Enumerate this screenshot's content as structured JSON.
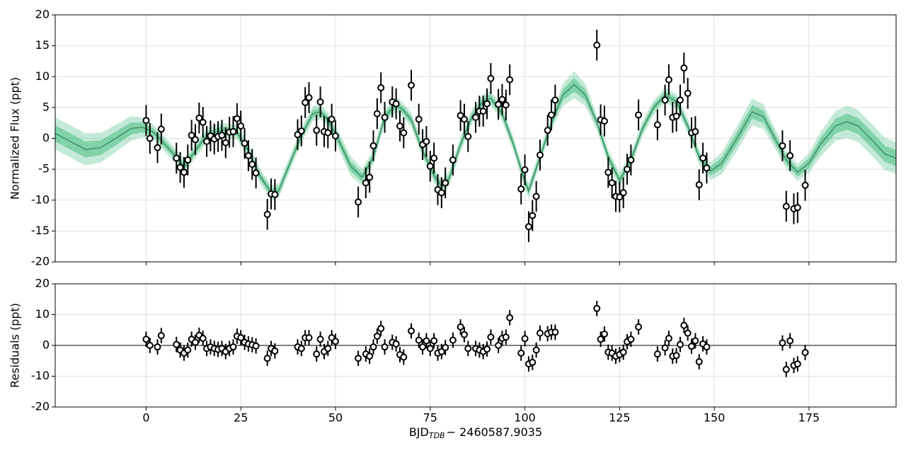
{
  "chart_data": [
    {
      "type": "errorbar",
      "ylabel": "Normalized Flux (ppt)",
      "xlim": [
        -24,
        198
      ],
      "ylim": [
        -20,
        20
      ],
      "xticks": [
        0,
        25,
        50,
        75,
        100,
        125,
        150,
        175
      ],
      "yticks": [
        -20,
        -15,
        -10,
        -5,
        0,
        5,
        10,
        15,
        20
      ],
      "grid": true,
      "color": "#000000",
      "yerr": 2.5,
      "x": [
        0,
        1,
        3,
        4,
        8,
        9,
        10,
        11,
        12,
        13,
        14,
        15,
        16,
        17,
        18,
        19,
        20,
        21,
        22,
        23,
        24,
        25,
        26,
        27,
        28,
        29,
        32,
        33,
        34,
        40,
        41,
        42,
        43,
        45,
        46,
        47,
        48,
        49,
        50,
        56,
        58,
        59,
        60,
        61,
        62,
        63,
        65,
        66,
        67,
        68,
        70,
        72,
        73,
        74,
        75,
        76,
        77,
        78,
        79,
        81,
        83,
        84,
        85,
        87,
        88,
        89,
        90,
        91,
        93,
        94,
        95,
        96,
        99,
        100,
        101,
        102,
        103,
        104,
        106,
        107,
        108,
        119,
        120,
        121,
        122,
        123,
        124,
        125,
        126,
        127,
        128,
        130,
        135,
        137,
        138,
        139,
        140,
        141,
        142,
        143,
        144,
        145,
        146,
        147,
        148,
        168,
        169,
        170,
        171,
        172,
        174
      ],
      "values": [
        2.9,
        0,
        -1.5,
        1.5,
        -3.2,
        -4.7,
        -5.5,
        -3.5,
        0.5,
        -0.2,
        3.3,
        2.6,
        -0.5,
        0.4,
        -0.1,
        0.3,
        0.5,
        -0.7,
        1,
        1.1,
        3.2,
        2,
        -0.8,
        -2.8,
        -4.2,
        -5.6,
        -12.3,
        -9,
        -9.1,
        0.6,
        1.2,
        5.8,
        6.6,
        1.3,
        5.9,
        1.1,
        0.9,
        3.1,
        0.4,
        -10.3,
        -7.2,
        -6.3,
        -1.2,
        4,
        8.2,
        3.4,
        5.9,
        5.6,
        2,
        0.9,
        8.6,
        3.1,
        -1,
        -0.5,
        -4.5,
        -3.2,
        -8.3,
        -8.8,
        -7.2,
        -3.5,
        3.7,
        3.1,
        0.3,
        3.4,
        4.4,
        4.4,
        5.6,
        9.7,
        5.5,
        6.3,
        5.4,
        9.5,
        -8.2,
        -5.1,
        -14.3,
        -12.5,
        -9.4,
        -2.7,
        1.3,
        3.8,
        6.2,
        15.1,
        3,
        2.8,
        -5.5,
        -7.2,
        -9.4,
        -9.5,
        -8.8,
        -5,
        -3.5,
        3.8,
        2.2,
        6.2,
        9.5,
        3.4,
        3.6,
        6.2,
        11.4,
        7.3,
        0.9,
        1.1,
        -7.5,
        -3.2,
        -4.8,
        -1.2,
        -11,
        -2.8,
        -11.4,
        -11.2,
        -7.6
      ],
      "model": {
        "color": "#3f8f68",
        "band_color": "#3cba7a",
        "x": [
          -24,
          -20,
          -16,
          -12,
          -8,
          -4,
          -1,
          2,
          5,
          8,
          10,
          13,
          16,
          20,
          24,
          27,
          30,
          33,
          35,
          38,
          41,
          44,
          46,
          48,
          51,
          54,
          57,
          60,
          63,
          66,
          68,
          70,
          73,
          76,
          78,
          80,
          83,
          86,
          89,
          91,
          94,
          97,
          100,
          101,
          104,
          107,
          110,
          113,
          116,
          119,
          122,
          125,
          128,
          131,
          134,
          137,
          140,
          143,
          146,
          149,
          152,
          156,
          160,
          163,
          166,
          169,
          172,
          175,
          178,
          182,
          185,
          188,
          192,
          195,
          198
        ],
        "values": [
          0.8,
          -0.5,
          -1.8,
          -1.5,
          0,
          1.6,
          1.8,
          1,
          -1,
          -3,
          -4.6,
          -2,
          0.5,
          1.3,
          1,
          -2,
          -6,
          -8.8,
          -8.5,
          -4,
          0.5,
          4,
          4.3,
          3,
          -0.5,
          -4.5,
          -6.3,
          -3,
          3.5,
          5.5,
          4.5,
          3,
          -2,
          -6,
          -7.8,
          -6.5,
          -1,
          3.5,
          6,
          6.5,
          4,
          -1,
          -7,
          -8.5,
          -3,
          2.5,
          7,
          8.7,
          7,
          2.5,
          -3,
          -6.8,
          -3.5,
          1.5,
          5,
          7,
          6,
          2,
          -3,
          -5.3,
          -4,
          0,
          4.3,
          3.5,
          0,
          -3.5,
          -5.5,
          -4,
          -1,
          2,
          2.7,
          2,
          -0.5,
          -2.5,
          -3.2
        ],
        "sigma": [
          1.3,
          1.3,
          1.3,
          1.2,
          1.1,
          1,
          0.8,
          0.6,
          0.6,
          0.6,
          0.6,
          0.6,
          0.6,
          0.6,
          0.6,
          0.6,
          0.6,
          0.6,
          0.6,
          0.6,
          0.6,
          0.6,
          0.6,
          0.6,
          0.7,
          0.8,
          0.7,
          0.6,
          0.6,
          0.6,
          0.6,
          0.6,
          0.6,
          0.6,
          0.6,
          0.6,
          0.6,
          0.6,
          0.6,
          0.6,
          0.6,
          0.6,
          0.6,
          0.6,
          0.6,
          0.6,
          0.9,
          1.1,
          0.9,
          0.6,
          0.6,
          0.6,
          0.6,
          0.6,
          0.6,
          0.6,
          0.6,
          0.6,
          0.6,
          0.7,
          0.9,
          1,
          1.1,
          1,
          0.8,
          0.7,
          0.7,
          0.8,
          1,
          1.2,
          1.3,
          1.3,
          1.3,
          1.3,
          1.3
        ]
      }
    },
    {
      "type": "errorbar",
      "ylabel": "Residuals (ppt)",
      "xlabel": {
        "main": "BJD",
        "sub": "TDB",
        "rest": "− 2460587.9035"
      },
      "xlim": [
        -24,
        198
      ],
      "ylim": [
        -20,
        20
      ],
      "xticks": [
        0,
        25,
        50,
        75,
        100,
        125,
        150,
        175
      ],
      "yticks": [
        -20,
        -10,
        0,
        10,
        20
      ],
      "grid": true,
      "color": "#000000",
      "yerr": 2.5,
      "refline": 0,
      "x": [
        0,
        1,
        3,
        4,
        8,
        9,
        10,
        11,
        12,
        13,
        14,
        15,
        16,
        17,
        18,
        19,
        20,
        21,
        22,
        23,
        24,
        25,
        26,
        27,
        28,
        29,
        32,
        33,
        34,
        40,
        41,
        42,
        43,
        45,
        46,
        47,
        48,
        49,
        50,
        56,
        58,
        59,
        60,
        61,
        62,
        63,
        65,
        66,
        67,
        68,
        70,
        72,
        73,
        74,
        75,
        76,
        77,
        78,
        79,
        81,
        83,
        84,
        85,
        87,
        88,
        89,
        90,
        91,
        93,
        94,
        95,
        96,
        99,
        100,
        101,
        102,
        103,
        104,
        106,
        107,
        108,
        119,
        120,
        121,
        122,
        123,
        124,
        125,
        126,
        127,
        128,
        130,
        135,
        137,
        138,
        139,
        140,
        141,
        142,
        143,
        144,
        145,
        146,
        147,
        148,
        168,
        169,
        170,
        171,
        172,
        174
      ],
      "values": [
        2,
        0,
        -0.5,
        3.2,
        0.3,
        -1.5,
        -2.5,
        -1.5,
        2,
        1,
        3.3,
        2.3,
        -1,
        -0.5,
        -1,
        -1.3,
        -1,
        -2,
        -1,
        -0.5,
        3,
        2.5,
        1,
        0.5,
        0.2,
        -0.2,
        -4.2,
        -1,
        -1.8,
        -0.5,
        -1,
        2.5,
        2.5,
        -2.8,
        2,
        -2,
        -1,
        2.5,
        1.3,
        -4.2,
        -2.8,
        -3.5,
        -0.5,
        3,
        5.5,
        -0.5,
        1,
        0.5,
        -3,
        -3.8,
        4.7,
        1.7,
        -0.5,
        1.5,
        -1,
        1.5,
        -2.5,
        -2,
        -0.7,
        1.7,
        6,
        3.5,
        -1,
        -1,
        -1.5,
        -2,
        -1.2,
        2.7,
        0,
        2.3,
        2.7,
        9,
        -2.5,
        2.2,
        -6,
        -5.5,
        -1.5,
        4,
        3.8,
        4.3,
        4.3,
        12,
        2,
        3.7,
        -2.2,
        -2.5,
        -3.5,
        -3,
        -2.2,
        1.2,
        2,
        6,
        -2.8,
        -0.8,
        2.3,
        -3.5,
        -3.3,
        0.3,
        6.5,
        4,
        -0.3,
        1.5,
        -5.3,
        0.5,
        -0.5,
        0.8,
        -7.8,
        1.5,
        -6.5,
        -6,
        -2.3
      ]
    }
  ]
}
